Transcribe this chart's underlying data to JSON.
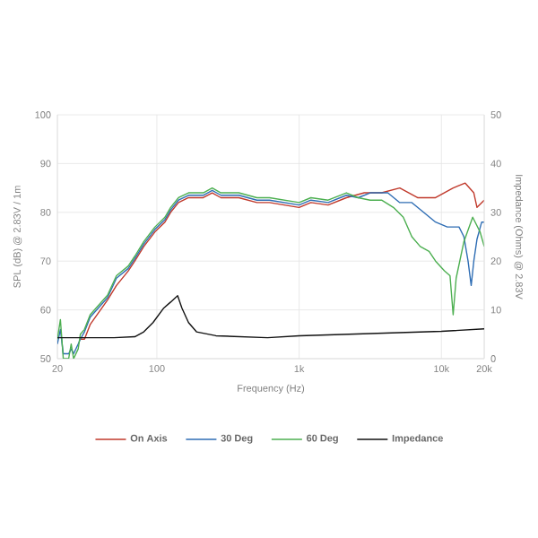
{
  "chart_data": {
    "type": "line",
    "xlabel": "Frequency (Hz)",
    "ylabel": "SPL (dB) @ 2.83V / 1m",
    "y2label": "Impedance (Ohms) @ 2.83V",
    "log": "x",
    "grid": true,
    "legend": "bottom",
    "xlim": [
      20,
      20000
    ],
    "xticks": [
      20,
      100,
      {
        "value": 1000,
        "label": "1k"
      },
      {
        "value": 10000,
        "label": "10k"
      },
      {
        "value": 20000,
        "label": "20k"
      }
    ],
    "ylim": [
      50,
      100
    ],
    "yticks": [
      50,
      60,
      70,
      80,
      90,
      100
    ],
    "y2lim": [
      0,
      50
    ],
    "y2ticks": [
      0,
      10,
      20,
      30,
      40,
      50
    ],
    "series": [
      {
        "name": "On Axis",
        "color": "#c0392b",
        "x": [
          29,
          31,
          34,
          45,
          52,
          63,
          70,
          81,
          97,
          114,
          125,
          142,
          167,
          212,
          245,
          282,
          377,
          505,
          619,
          1000,
          1210,
          1600,
          2150,
          2870,
          3800,
          5100,
          6800,
          9100,
          12100,
          14700,
          16900,
          17800,
          20000
        ],
        "values": [
          54,
          54,
          57,
          62,
          65,
          68,
          70,
          73,
          76,
          78,
          80,
          82,
          83,
          83,
          84,
          83,
          83,
          82,
          82,
          81,
          82,
          81.5,
          83,
          84,
          84,
          85,
          83,
          83,
          85,
          86,
          84,
          81,
          82.5
        ]
      },
      {
        "name": "30 Deg",
        "color": "#2e6db4",
        "x": [
          20,
          21,
          22,
          24,
          25,
          26,
          28,
          29,
          31,
          34,
          45,
          52,
          63,
          70,
          81,
          97,
          114,
          125,
          142,
          167,
          212,
          245,
          282,
          377,
          505,
          619,
          1000,
          1210,
          1600,
          2150,
          2600,
          3160,
          4200,
          5100,
          6200,
          7500,
          9100,
          11000,
          13300,
          14400,
          15400,
          16200,
          16900,
          17800,
          19200,
          20000
        ],
        "values": [
          53,
          56,
          51,
          51,
          52,
          51,
          53,
          54,
          55.5,
          58.5,
          62.5,
          66.5,
          68.5,
          70.5,
          73.5,
          76.5,
          78.5,
          80.5,
          82.5,
          83.5,
          83.5,
          84.5,
          83.5,
          83.5,
          82.5,
          82.5,
          81.5,
          82.5,
          82,
          83.5,
          83,
          84,
          84,
          82,
          82,
          80,
          78,
          77,
          77,
          75,
          70,
          65,
          70,
          74.5,
          78,
          78
        ]
      },
      {
        "name": "60 Deg",
        "color": "#4caf50",
        "x": [
          20,
          21,
          22,
          24,
          25,
          26,
          28,
          29,
          31,
          34,
          45,
          52,
          63,
          70,
          81,
          97,
          114,
          125,
          142,
          167,
          212,
          245,
          282,
          377,
          505,
          619,
          1000,
          1210,
          1600,
          2150,
          2600,
          3160,
          3800,
          4600,
          5400,
          6200,
          7100,
          8200,
          9100,
          10500,
          11500,
          12100,
          12700,
          14400,
          16600,
          18700,
          20000
        ],
        "values": [
          54,
          58,
          50,
          50,
          53,
          50,
          52,
          55,
          56,
          59,
          63,
          67,
          69,
          71,
          74,
          77,
          79,
          81,
          83,
          84,
          84,
          85,
          84,
          84,
          83,
          83,
          82,
          83,
          82.5,
          84,
          83,
          82.5,
          82.5,
          81,
          79,
          75,
          73,
          72,
          70,
          68,
          67,
          59,
          66.5,
          74,
          79,
          76,
          73
        ]
      },
      {
        "name": "Impedance",
        "color": "#111111",
        "axis": "y2",
        "x": [
          20,
          50,
          70,
          81,
          94,
          112,
          125,
          140,
          150,
          167,
          190,
          260,
          600,
          1000,
          10000,
          20000
        ],
        "values": [
          4.3,
          4.3,
          4.5,
          5.5,
          7.4,
          10.4,
          11.6,
          12.9,
          10.4,
          7.4,
          5.5,
          4.7,
          4.3,
          4.7,
          5.6,
          6.1
        ]
      }
    ]
  }
}
